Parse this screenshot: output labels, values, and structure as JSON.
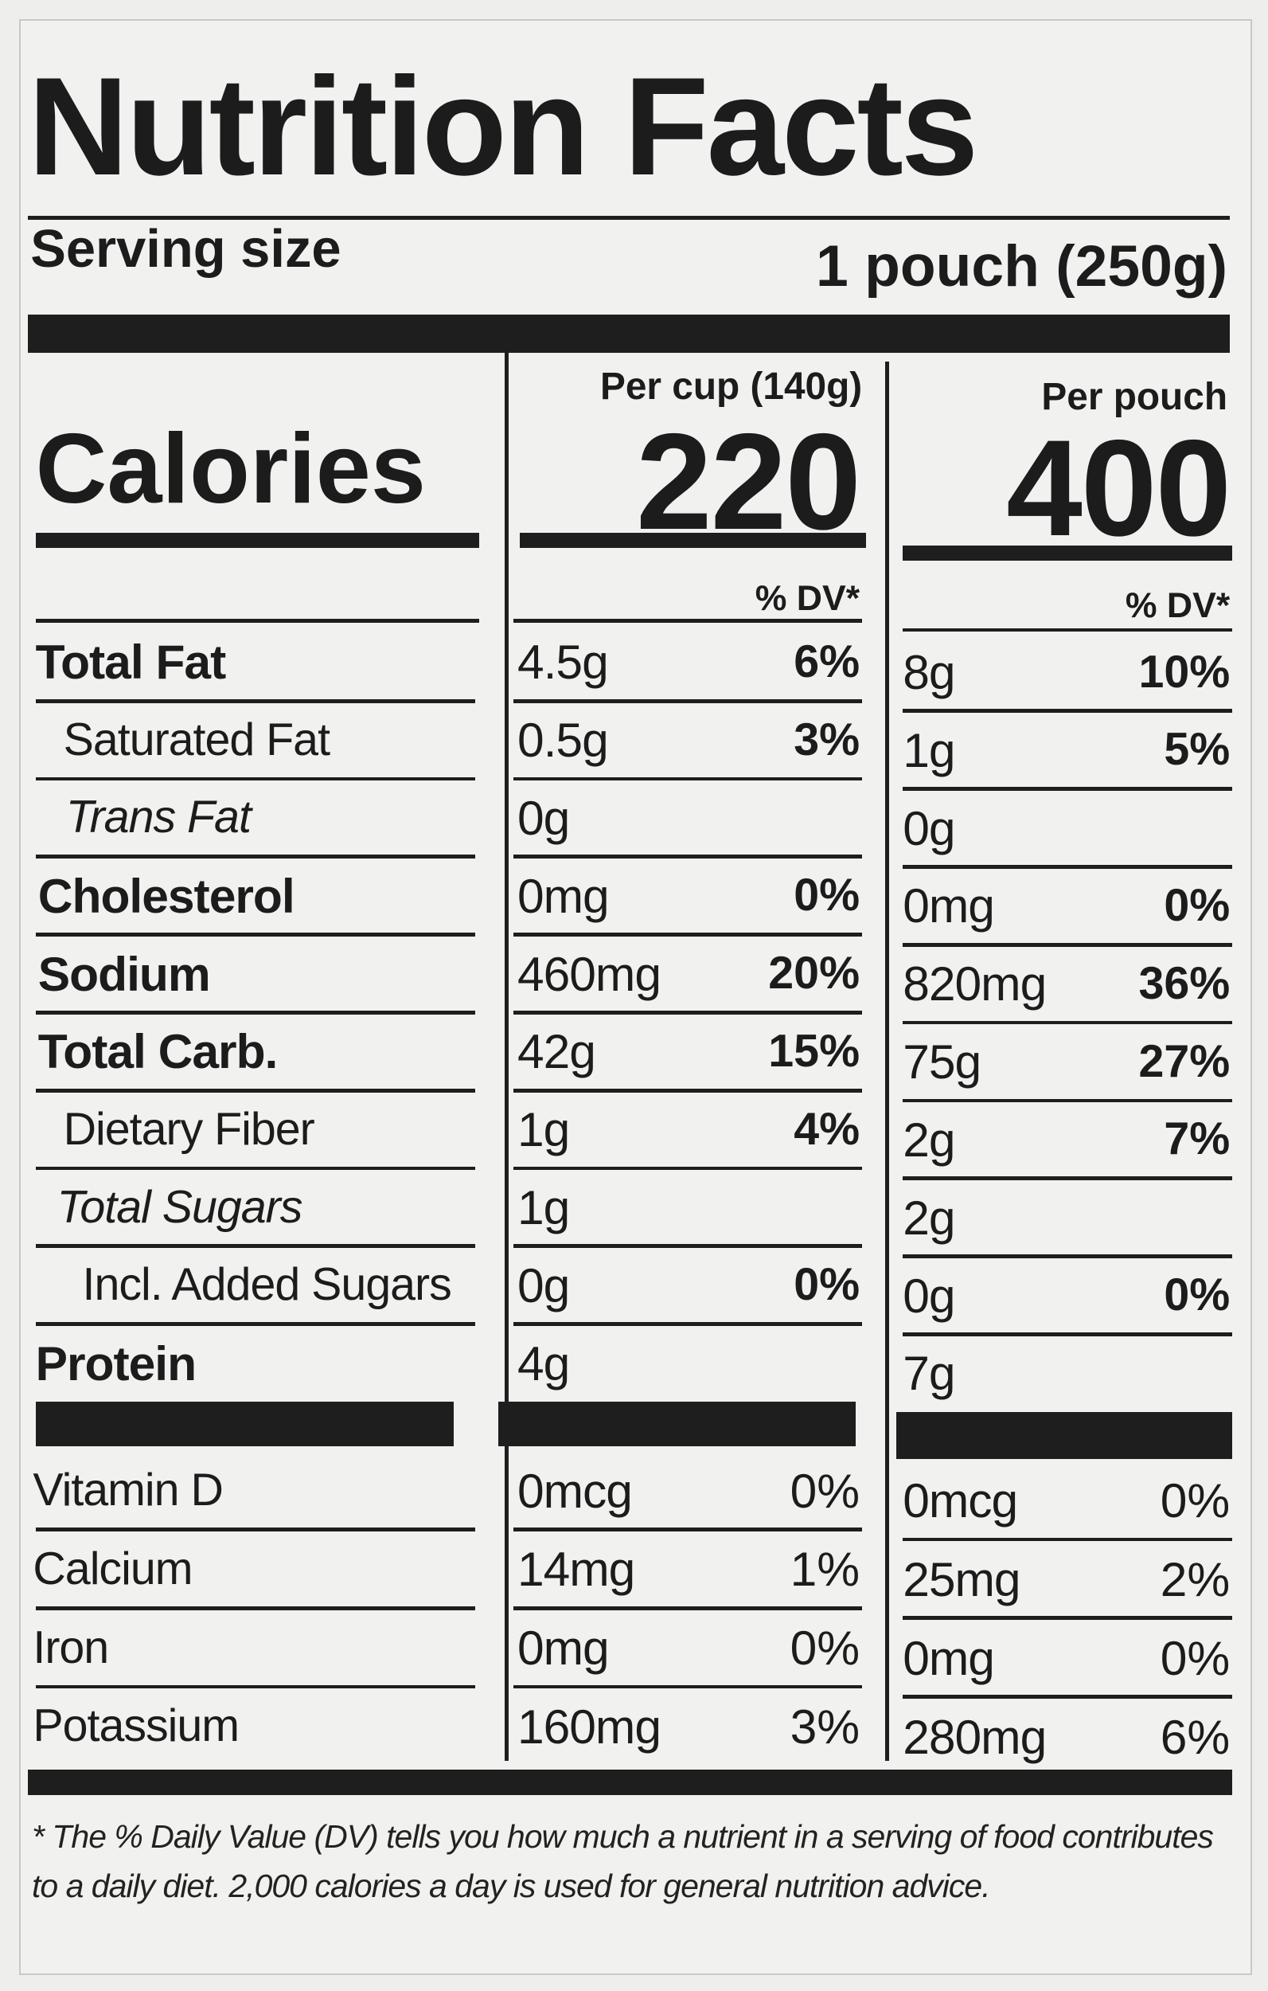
{
  "title": "Nutrition Facts",
  "serving_size": {
    "label": "Serving size",
    "value": "1 pouch (250g)"
  },
  "calories_label": "Calories",
  "columns": [
    {
      "header": "Per cup (140g)",
      "calories": "220",
      "dv_header": "% DV*"
    },
    {
      "header": "Per pouch",
      "calories": "400",
      "dv_header": "% DV*"
    }
  ],
  "nutrients": [
    {
      "name": "Total Fat",
      "cup": {
        "amount": "4.5g",
        "dv": "6%"
      },
      "pouch": {
        "amount": "8g",
        "dv": "10%"
      }
    },
    {
      "name": "Saturated Fat",
      "cup": {
        "amount": "0.5g",
        "dv": "3%"
      },
      "pouch": {
        "amount": "1g",
        "dv": "5%"
      }
    },
    {
      "name": "Trans Fat",
      "cup": {
        "amount": "0g"
      },
      "pouch": {
        "amount": "0g"
      }
    },
    {
      "name": "Cholesterol",
      "cup": {
        "amount": "0mg",
        "dv": "0%"
      },
      "pouch": {
        "amount": "0mg",
        "dv": "0%"
      }
    },
    {
      "name": "Sodium",
      "cup": {
        "amount": "460mg",
        "dv": "20%"
      },
      "pouch": {
        "amount": "820mg",
        "dv": "36%"
      }
    },
    {
      "name": "Total Carb.",
      "cup": {
        "amount": "42g",
        "dv": "15%"
      },
      "pouch": {
        "amount": "75g",
        "dv": "27%"
      }
    },
    {
      "name": "Dietary Fiber",
      "cup": {
        "amount": "1g",
        "dv": "4%"
      },
      "pouch": {
        "amount": "2g",
        "dv": "7%"
      }
    },
    {
      "name": "Total Sugars",
      "cup": {
        "amount": "1g"
      },
      "pouch": {
        "amount": "2g"
      }
    },
    {
      "name": "Incl. Added Sugars",
      "cup": {
        "amount": "0g",
        "dv": "0%"
      },
      "pouch": {
        "amount": "0g",
        "dv": "0%"
      }
    },
    {
      "name": "Protein",
      "cup": {
        "amount": "4g"
      },
      "pouch": {
        "amount": "7g"
      }
    }
  ],
  "vitamins": [
    {
      "name": "Vitamin D",
      "cup": {
        "amount": "0mcg",
        "dv": "0%"
      },
      "pouch": {
        "amount": "0mcg",
        "dv": "0%"
      }
    },
    {
      "name": "Calcium",
      "cup": {
        "amount": "14mg",
        "dv": "1%"
      },
      "pouch": {
        "amount": "25mg",
        "dv": "2%"
      }
    },
    {
      "name": "Iron",
      "cup": {
        "amount": "0mg",
        "dv": "0%"
      },
      "pouch": {
        "amount": "0mg",
        "dv": "0%"
      }
    },
    {
      "name": "Potassium",
      "cup": {
        "amount": "160mg",
        "dv": "3%"
      },
      "pouch": {
        "amount": "280mg",
        "dv": "6%"
      }
    }
  ],
  "footnote": "* The % Daily Value (DV) tells you how much a nutrient in a serving of food contributes to a daily diet. 2,000 calories a day is used for general nutrition advice."
}
